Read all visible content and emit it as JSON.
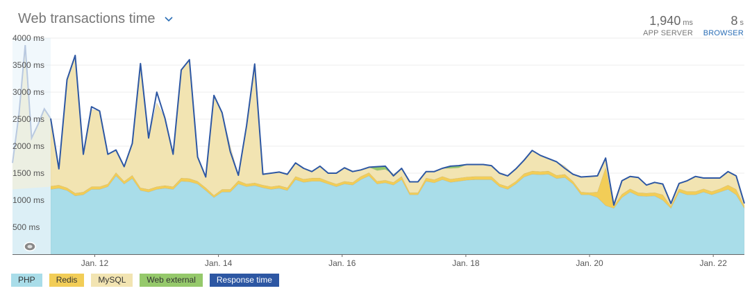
{
  "header": {
    "title": "Web transactions time",
    "app_server": {
      "value": "1,940",
      "unit": "ms",
      "label": "APP SERVER"
    },
    "browser": {
      "value": "8",
      "unit": "s",
      "label": "BROWSER"
    }
  },
  "legend": [
    {
      "label": "PHP",
      "color": "#a9dde9"
    },
    {
      "label": "Redis",
      "color": "#f2cd57"
    },
    {
      "label": "MySQL",
      "color": "#f2e4b2"
    },
    {
      "label": "Web external",
      "color": "#95c96b"
    },
    {
      "label": "Response time",
      "color": "#2d57a3"
    }
  ],
  "chart_data": {
    "type": "area",
    "title": "Web transactions time",
    "y_unit": "ms",
    "ylim": [
      0,
      4000
    ],
    "y_ticks": [
      {
        "value": 500,
        "label": "500 ms"
      },
      {
        "value": 1000,
        "label": "1000 ms"
      },
      {
        "value": 1500,
        "label": "1500 ms"
      },
      {
        "value": 2000,
        "label": "2000 ms"
      },
      {
        "value": 2500,
        "label": "2500 ms"
      },
      {
        "value": 3000,
        "label": "3000 ms"
      },
      {
        "value": 3500,
        "label": "3500 ms"
      },
      {
        "value": 4000,
        "label": "4000 ms"
      }
    ],
    "x_range": [
      "Jan. 10 16:00",
      "Jan. 22 12:00"
    ],
    "x_tick_labels": [
      "Jan. 12",
      "Jan. 14",
      "Jan. 16",
      "Jan. 18",
      "Jan. 20",
      "Jan. 22"
    ],
    "x_ticks_days_from_range_start": [
      1.33,
      3.33,
      5.33,
      7.33,
      9.33,
      11.33
    ],
    "grid": true,
    "highlighted_span_days": [
      0,
      0.67
    ],
    "series": [
      {
        "name": "PHP",
        "color": "#a9dde9",
        "values": [
          1200,
          1220,
          1180,
          1080,
          1100,
          1200,
          1200,
          1250,
          1450,
          1300,
          1400,
          1180,
          1150,
          1200,
          1220,
          1200,
          1350,
          1340,
          1300,
          1180,
          1050,
          1150,
          1150,
          1300,
          1250,
          1270,
          1230,
          1200,
          1220,
          1180,
          1380,
          1330,
          1350,
          1350,
          1300,
          1250,
          1300,
          1280,
          1380,
          1450,
          1300,
          1320,
          1280,
          1380,
          1100,
          1100,
          1350,
          1320,
          1380,
          1330,
          1350,
          1370,
          1380,
          1380,
          1380,
          1250,
          1200,
          1300,
          1430,
          1480,
          1470,
          1480,
          1400,
          1420,
          1300,
          1100,
          1100,
          1050,
          900,
          850,
          1050,
          1150,
          1080,
          1070,
          1080,
          1000,
          850,
          1150,
          1100,
          1100,
          1150,
          1100,
          1150,
          1200,
          1100,
          850
        ]
      },
      {
        "name": "Redis",
        "values": [
          60,
          60,
          50,
          50,
          50,
          50,
          50,
          50,
          60,
          50,
          60,
          50,
          50,
          50,
          50,
          50,
          60,
          60,
          50,
          50,
          40,
          50,
          50,
          60,
          50,
          50,
          50,
          50,
          50,
          50,
          60,
          60,
          60,
          60,
          50,
          50,
          50,
          50,
          60,
          60,
          50,
          50,
          50,
          60,
          40,
          40,
          60,
          60,
          60,
          60,
          60,
          60,
          60,
          60,
          60,
          50,
          50,
          50,
          60,
          60,
          60,
          60,
          60,
          60,
          50,
          50,
          40,
          100,
          700,
          40,
          60,
          60,
          60,
          60,
          60,
          100,
          40,
          60,
          60,
          60,
          60,
          60,
          60,
          80,
          100,
          40
        ]
      },
      {
        "name": "MySQL",
        "values": [
          1250,
          300,
          2000,
          2550,
          700,
          1430,
          1400,
          550,
          420,
          270,
          590,
          2300,
          950,
          1550,
          1250,
          600,
          2000,
          2200,
          450,
          200,
          1850,
          1420,
          800,
          100,
          1080,
          2200,
          200,
          250,
          250,
          250,
          250,
          200,
          120,
          220,
          150,
          200,
          250,
          200,
          120,
          100,
          200,
          200,
          150,
          150,
          200,
          200,
          120,
          150,
          150,
          200,
          190,
          230,
          220,
          220,
          200,
          200,
          200,
          230,
          250,
          380,
          300,
          230,
          250,
          150,
          130,
          280,
          300,
          300,
          180,
          20,
          250,
          230,
          280,
          150,
          190,
          200,
          50,
          100,
          200,
          280,
          200,
          250,
          200,
          250,
          250,
          50
        ]
      },
      {
        "name": "Web external",
        "values": [
          0,
          0,
          0,
          0,
          0,
          0,
          0,
          0,
          0,
          0,
          0,
          0,
          0,
          0,
          0,
          0,
          0,
          0,
          0,
          0,
          0,
          0,
          0,
          0,
          0,
          0,
          0,
          0,
          0,
          0,
          0,
          0,
          0,
          0,
          0,
          0,
          0,
          0,
          0,
          0,
          70,
          60,
          0,
          0,
          0,
          0,
          0,
          0,
          0,
          40,
          40,
          0,
          0,
          0,
          0,
          0,
          0,
          0,
          0,
          0,
          0,
          0,
          0,
          0,
          0,
          0,
          0,
          0,
          0,
          0,
          0,
          0,
          0,
          0,
          0,
          0,
          0,
          0,
          0,
          0,
          0,
          0,
          0,
          0,
          0,
          0
        ]
      },
      {
        "name": "Response time",
        "color": "#2d57a3",
        "values": [
          2510,
          1580,
          3230,
          3680,
          1850,
          2730,
          2650,
          1850,
          1930,
          1620,
          2050,
          3530,
          2150,
          3000,
          2520,
          1850,
          3410,
          3600,
          1800,
          1430,
          2940,
          2620,
          1900,
          1460,
          2380,
          3520,
          1480,
          1500,
          1520,
          1480,
          1690,
          1590,
          1530,
          1630,
          1500,
          1500,
          1600,
          1530,
          1560,
          1610,
          1620,
          1630,
          1450,
          1590,
          1340,
          1340,
          1530,
          1530,
          1590,
          1630,
          1640,
          1660,
          1660,
          1660,
          1640,
          1500,
          1450,
          1580,
          1740,
          1920,
          1830,
          1770,
          1710,
          1590,
          1480,
          1430,
          1440,
          1450,
          1780,
          910,
          1360,
          1440,
          1420,
          1280,
          1330,
          1300,
          940,
          1310,
          1360,
          1440,
          1410,
          1410,
          1410,
          1530,
          1450,
          940
        ]
      }
    ],
    "left_faded_response_time": [
      1690,
      2580,
      3870,
      2150,
      2400,
      2690,
      2510
    ]
  }
}
